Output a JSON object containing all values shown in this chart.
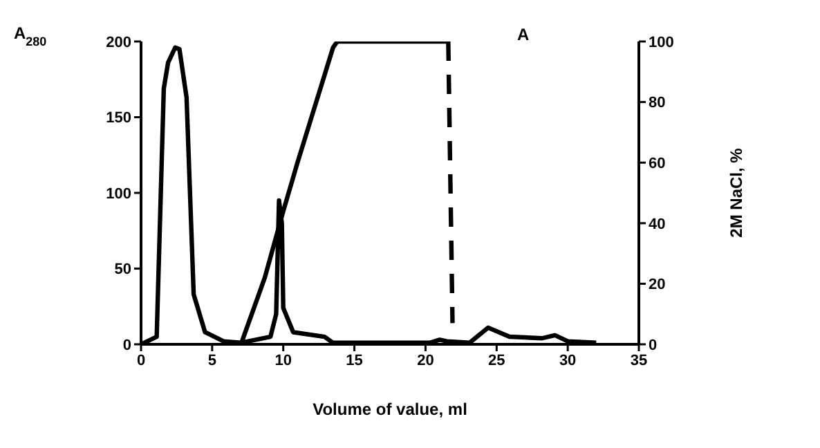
{
  "chart_data": {
    "type": "line",
    "xlabel": "Volume of value, ml",
    "ylabel": "A$_{280}$",
    "y2label": "2M NaCl, %",
    "annotations": [
      "A"
    ],
    "xlim": [
      0,
      35
    ],
    "xticks": [
      0,
      5,
      10,
      15,
      20,
      25,
      30,
      35
    ],
    "ylim": [
      0,
      200
    ],
    "yticks": [
      0,
      50,
      100,
      150,
      200
    ],
    "y2lim": [
      0,
      100
    ],
    "y2ticks": [
      0,
      20,
      40,
      60,
      80,
      100
    ],
    "series": [
      {
        "color": "#000000",
        "x": [
          0,
          1.1,
          1.6,
          1.9,
          2.4,
          2.7,
          3.2,
          3.7,
          4.5,
          5.8,
          7,
          9.1,
          9.5,
          9.7,
          9.9,
          10,
          10.7,
          12.9,
          13.5,
          20.3,
          21,
          21.5,
          23.1,
          24.4,
          25.9,
          28.2,
          29.1,
          30,
          32
        ],
        "values": [
          0,
          5,
          169,
          186,
          196,
          195,
          163,
          33,
          8,
          2,
          1,
          5,
          20,
          95,
          80,
          24,
          8,
          5,
          1,
          1,
          3,
          2,
          1,
          11,
          5,
          4,
          6,
          2,
          1
        ]
      },
      {
        "color": "#000000",
        "axis": "y2",
        "x": [
          7,
          7.1,
          8.7,
          10,
          11,
          13.5,
          13.8,
          21.6
        ],
        "values": [
          0,
          1,
          22,
          44,
          60,
          98,
          100,
          100
        ]
      },
      {
        "color": "#000000",
        "axis": "y2",
        "line_style": "dashed",
        "x": [
          21.6,
          21.9
        ],
        "values": [
          100,
          7
        ]
      }
    ]
  }
}
